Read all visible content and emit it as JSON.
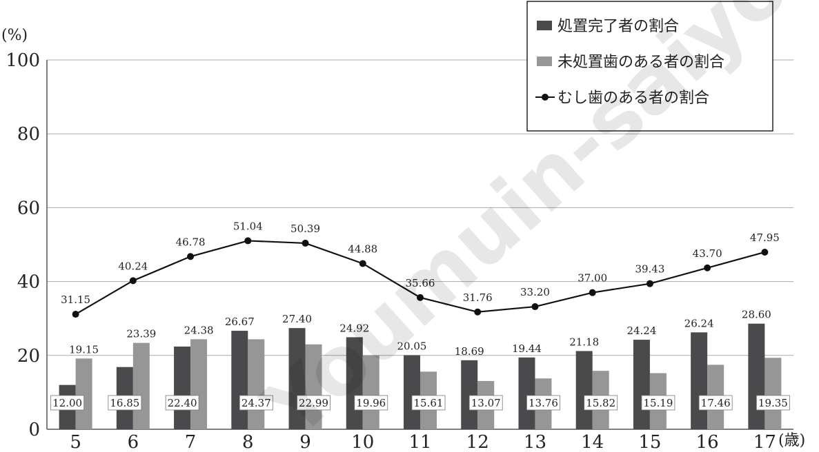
{
  "chart_data": {
    "type": "bar",
    "y_unit": "(%)",
    "x_unit": "(歳)",
    "ylim": [
      0,
      100
    ],
    "yticks": [
      "0",
      "20",
      "40",
      "60",
      "80",
      "100"
    ],
    "grid": true,
    "legend_position": "top-right",
    "categories": [
      "5",
      "6",
      "7",
      "8",
      "9",
      "10",
      "11",
      "12",
      "13",
      "14",
      "15",
      "16",
      "17"
    ],
    "series": [
      {
        "name": "処置完了者の割合",
        "kind": "bar",
        "color": "#4a4a4c",
        "values": [
          12.0,
          16.85,
          22.4,
          26.67,
          27.4,
          24.92,
          20.05,
          18.69,
          19.44,
          21.18,
          24.24,
          26.24,
          28.6
        ],
        "labels": [
          "12.00",
          "16.85",
          "22.40",
          "26.67",
          "27.40",
          "24.92",
          "20.05",
          "18.69",
          "19.44",
          "21.18",
          "24.24",
          "26.24",
          "28.60"
        ]
      },
      {
        "name": "未処置歯のある者の割合",
        "kind": "bar",
        "color": "#969696",
        "values": [
          19.15,
          23.39,
          24.38,
          24.37,
          22.99,
          19.96,
          15.61,
          13.07,
          13.76,
          15.82,
          15.19,
          17.46,
          19.35
        ],
        "labels": [
          "19.15",
          "23.39",
          "24.38",
          "24.37",
          "22.99",
          "19.96",
          "15.61",
          "13.07",
          "13.76",
          "15.82",
          "15.19",
          "17.46",
          "19.35"
        ]
      },
      {
        "name": "むし歯のある者の割合",
        "kind": "line",
        "color": "#111111",
        "values": [
          31.15,
          40.24,
          46.78,
          51.04,
          50.39,
          44.88,
          35.66,
          31.76,
          33.2,
          37.0,
          39.43,
          43.7,
          47.95
        ],
        "labels": [
          "31.15",
          "40.24",
          "46.78",
          "51.04",
          "50.39",
          "44.88",
          "35.66",
          "31.76",
          "33.20",
          "37.00",
          "39.43",
          "43.70",
          "47.95"
        ]
      }
    ]
  },
  "watermark": "Youmuin-saiyo"
}
